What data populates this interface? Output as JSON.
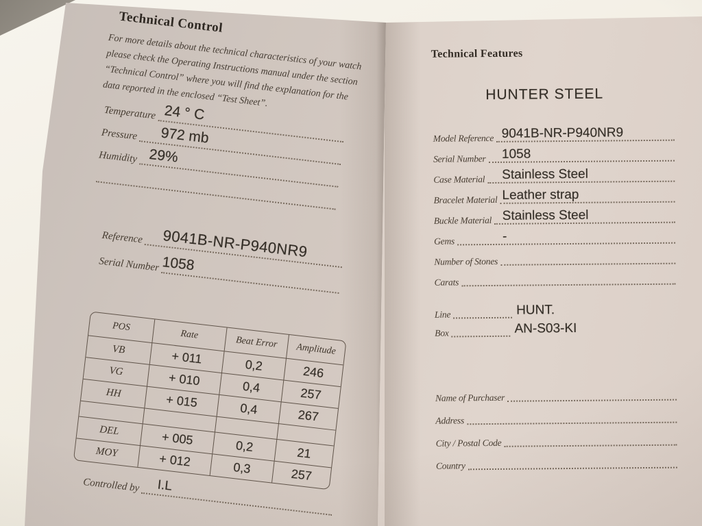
{
  "colors": {
    "background": "#f2eee3",
    "paper_left": "#d1c7bf",
    "paper_right": "#ddd2ca",
    "ink_label": "#473d32",
    "ink_print": "#352f28"
  },
  "left_page": {
    "title": "Technical Control",
    "intro": "For more details about the technical characteristics of your watch please check the Operating Instructions manual under the section “Technical Control” where you will find the explanation for the data reported in the enclosed “Test Sheet”.",
    "env_fields": [
      {
        "id": "temperature",
        "label": "Temperature",
        "value": "24 ° C"
      },
      {
        "id": "pressure",
        "label": "Pressure",
        "value": "972 mb"
      },
      {
        "id": "humidity",
        "label": "Humidity",
        "value": "29%"
      },
      {
        "id": "blank",
        "label": "",
        "value": ""
      }
    ],
    "ref_fields": [
      {
        "id": "reference",
        "label": "Reference",
        "value": "9041B-NR-P940NR9"
      },
      {
        "id": "serial_number",
        "label": "Serial Number",
        "value": "1058"
      }
    ],
    "controlled_by": {
      "id": "controlled_by",
      "label": "Controlled by",
      "value": "I.L"
    },
    "measurements_table": {
      "headers": [
        "POS",
        "Rate",
        "Beat Error",
        "Amplitude"
      ],
      "rows": [
        [
          "VB",
          "+ 011",
          "0,2",
          "246"
        ],
        [
          "VG",
          "+ 010",
          "0,4",
          "257"
        ],
        [
          "HH",
          "+ 015",
          "0,4",
          "267"
        ],
        [
          "",
          "",
          "",
          ""
        ],
        [
          "DEL",
          "+ 005",
          "0,2",
          "21"
        ],
        [
          "MOY",
          "+ 012",
          "0,3",
          "257"
        ]
      ]
    }
  },
  "right_page": {
    "title": "Technical Features",
    "model_name": "HUNTER STEEL",
    "spec_fields": [
      {
        "id": "model_reference",
        "label": "Model Reference",
        "value": "9041B-NR-P940NR9"
      },
      {
        "id": "serial_number",
        "label": "Serial Number",
        "value": "1058"
      },
      {
        "id": "case_material",
        "label": "Case Material",
        "value": "Stainless Steel"
      },
      {
        "id": "bracelet_material",
        "label": "Bracelet Material",
        "value": "Leather strap"
      },
      {
        "id": "buckle_material",
        "label": "Buckle Material",
        "value": "Stainless Steel"
      },
      {
        "id": "gems",
        "label": "Gems",
        "value": "-"
      },
      {
        "id": "number_of_stones",
        "label": "Number of Stones",
        "value": ""
      },
      {
        "id": "carats",
        "label": "Carats",
        "value": ""
      }
    ],
    "line_box_fields": [
      {
        "id": "line",
        "label": "Line",
        "value": "HUNT."
      },
      {
        "id": "box",
        "label": "Box",
        "value": "AN-S03-KI"
      }
    ],
    "purchaser_fields": [
      {
        "id": "name_of_purchaser",
        "label": "Name of Purchaser",
        "value": ""
      },
      {
        "id": "address",
        "label": "Address",
        "value": ""
      },
      {
        "id": "city_postal_code",
        "label": "City / Postal Code",
        "value": ""
      },
      {
        "id": "country",
        "label": "Country",
        "value": ""
      }
    ]
  }
}
